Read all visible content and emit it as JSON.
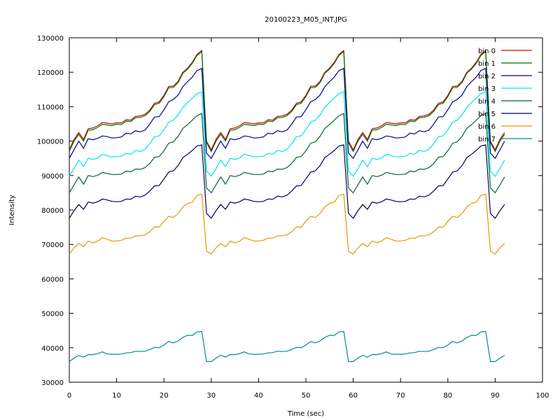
{
  "chart_data": {
    "type": "line",
    "title": "20100223_M05_INT.JPG",
    "xlabel": "Time (sec)",
    "ylabel": "Intensity",
    "xlim": [
      0,
      100
    ],
    "ylim": [
      30000,
      130000
    ],
    "x_ticks": [
      "0",
      "10",
      "20",
      "30",
      "40",
      "50",
      "60",
      "70",
      "80",
      "90",
      "100"
    ],
    "y_ticks": [
      "30000",
      "40000",
      "50000",
      "60000",
      "70000",
      "80000",
      "90000",
      "100000",
      "110000",
      "120000",
      "130000"
    ],
    "grid": false,
    "legend_position": "top-right",
    "period_sec": 30,
    "x": [
      0,
      1,
      2,
      3,
      4,
      5,
      6,
      7,
      8,
      9,
      10,
      11,
      12,
      13,
      14,
      15,
      16,
      17,
      18,
      19,
      20,
      21,
      22,
      23,
      24,
      25,
      26,
      27,
      28,
      29
    ],
    "series": [
      {
        "name": "bin 0",
        "color": "#cc0000",
        "values": [
          97500,
          100500,
          102500,
          100500,
          103600,
          103800,
          104500,
          105400,
          105200,
          105000,
          105300,
          105300,
          106200,
          106100,
          107200,
          107300,
          107800,
          109000,
          111000,
          111400,
          113300,
          115900,
          116000,
          117400,
          120000,
          121200,
          122900,
          125200,
          126300,
          100000
        ]
      },
      {
        "name": "bin 1",
        "color": "#007000",
        "values": [
          97000,
          100000,
          102000,
          100000,
          103200,
          103300,
          104000,
          104900,
          104700,
          104500,
          104900,
          104800,
          105800,
          105700,
          106800,
          106900,
          107400,
          108600,
          110600,
          111000,
          112900,
          115500,
          115600,
          117000,
          119700,
          120900,
          122600,
          124900,
          126000,
          99500
        ]
      },
      {
        "name": "bin 2",
        "color": "#000099",
        "values": [
          95000,
          97500,
          100000,
          97900,
          100700,
          100400,
          100800,
          101500,
          101300,
          100900,
          101000,
          101200,
          102300,
          102100,
          103000,
          102700,
          103200,
          104900,
          107000,
          107100,
          109100,
          111400,
          112100,
          113400,
          115800,
          117300,
          118600,
          120500,
          121100,
          96500
        ]
      },
      {
        "name": "bin 3",
        "color": "#00e6e6",
        "values": [
          89800,
          92000,
          94500,
          92600,
          95000,
          94700,
          95100,
          96200,
          95800,
          95400,
          95500,
          95600,
          96400,
          96200,
          97300,
          97000,
          97600,
          99200,
          101300,
          101500,
          103300,
          105500,
          106100,
          107600,
          109800,
          111200,
          112500,
          113800,
          114300,
          91300
        ]
      },
      {
        "name": "bin 4",
        "color": "#006633",
        "values": [
          85000,
          87300,
          89600,
          87500,
          90000,
          89700,
          90100,
          90900,
          90600,
          90300,
          90300,
          90400,
          91300,
          91100,
          91900,
          91800,
          92300,
          93500,
          95300,
          95500,
          97200,
          99400,
          99800,
          101400,
          103700,
          104800,
          106100,
          107400,
          108000,
          86400
        ]
      },
      {
        "name": "bin 5",
        "color": "#000066",
        "values": [
          77600,
          79800,
          81600,
          80200,
          82300,
          82000,
          82400,
          83200,
          82900,
          82500,
          82400,
          82500,
          83200,
          83100,
          84000,
          83800,
          84300,
          85500,
          87000,
          87100,
          89000,
          91000,
          91400,
          92900,
          95200,
          96200,
          97300,
          98600,
          98900,
          79000
        ]
      },
      {
        "name": "bin 6",
        "color": "#e69900",
        "values": [
          67200,
          69000,
          70300,
          69300,
          71000,
          70500,
          71000,
          72000,
          71500,
          71000,
          71000,
          71200,
          71800,
          71800,
          72500,
          72500,
          72800,
          73700,
          75100,
          75000,
          76700,
          78200,
          77800,
          79000,
          80900,
          81900,
          82300,
          84200,
          84600,
          68000
        ]
      },
      {
        "name": "bin 7",
        "color": "#008b8b",
        "values": [
          36000,
          37000,
          37800,
          37300,
          38000,
          38000,
          38300,
          38800,
          38200,
          38100,
          38100,
          38200,
          38500,
          38600,
          39000,
          38900,
          39000,
          39500,
          40100,
          40000,
          40800,
          41800,
          41400,
          42000,
          43000,
          43600,
          43600,
          44600,
          44700,
          36000
        ]
      }
    ]
  }
}
